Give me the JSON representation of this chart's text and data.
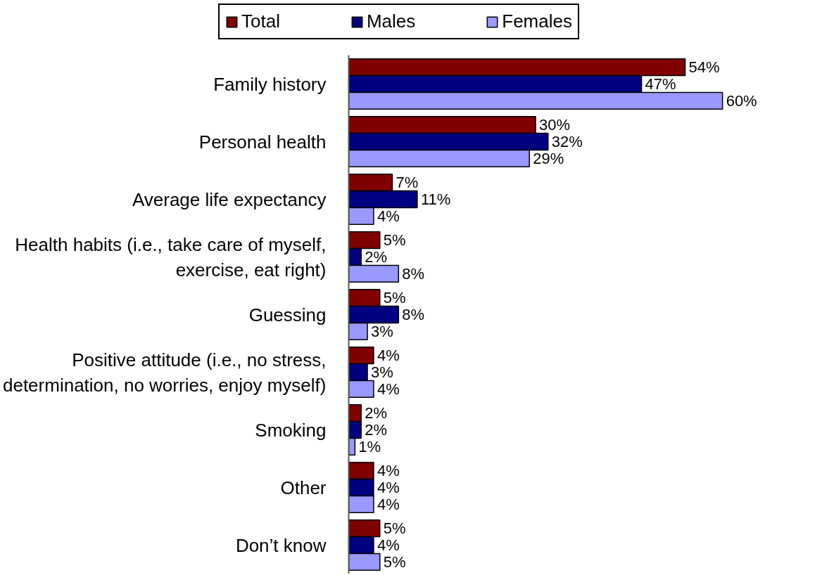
{
  "chart_data": {
    "type": "bar",
    "orientation": "horizontal",
    "categories": [
      "Family history",
      "Personal health",
      "Average life expectancy",
      "Health habits (i.e., take care of myself, exercise, eat right)",
      "Guessing",
      "Positive attitude (i.e., no stress, determination, no worries, enjoy myself)",
      "Smoking",
      "Other",
      "Don’t know"
    ],
    "series": [
      {
        "name": "Total",
        "color": "#800000",
        "values": [
          54,
          30,
          7,
          5,
          5,
          4,
          2,
          4,
          5
        ],
        "value_labels": [
          "54%",
          "30%",
          "7%",
          "5%",
          "5%",
          "4%",
          "2%",
          "4%",
          "5%"
        ]
      },
      {
        "name": "Males",
        "color": "#000080",
        "values": [
          47,
          32,
          11,
          2,
          8,
          3,
          2,
          4,
          4
        ],
        "value_labels": [
          "47%",
          "32%",
          "11%",
          "2%",
          "8%",
          "3%",
          "2%",
          "4%",
          "4%"
        ]
      },
      {
        "name": "Females",
        "color": "#9999ff",
        "values": [
          60,
          29,
          4,
          8,
          3,
          4,
          1,
          4,
          5
        ],
        "value_labels": [
          "60%",
          "29%",
          "4%",
          "8%",
          "3%",
          "4%",
          "1%",
          "4%",
          "5%"
        ]
      }
    ],
    "legend": "top",
    "grid": false,
    "tick_labels": "y"
  }
}
